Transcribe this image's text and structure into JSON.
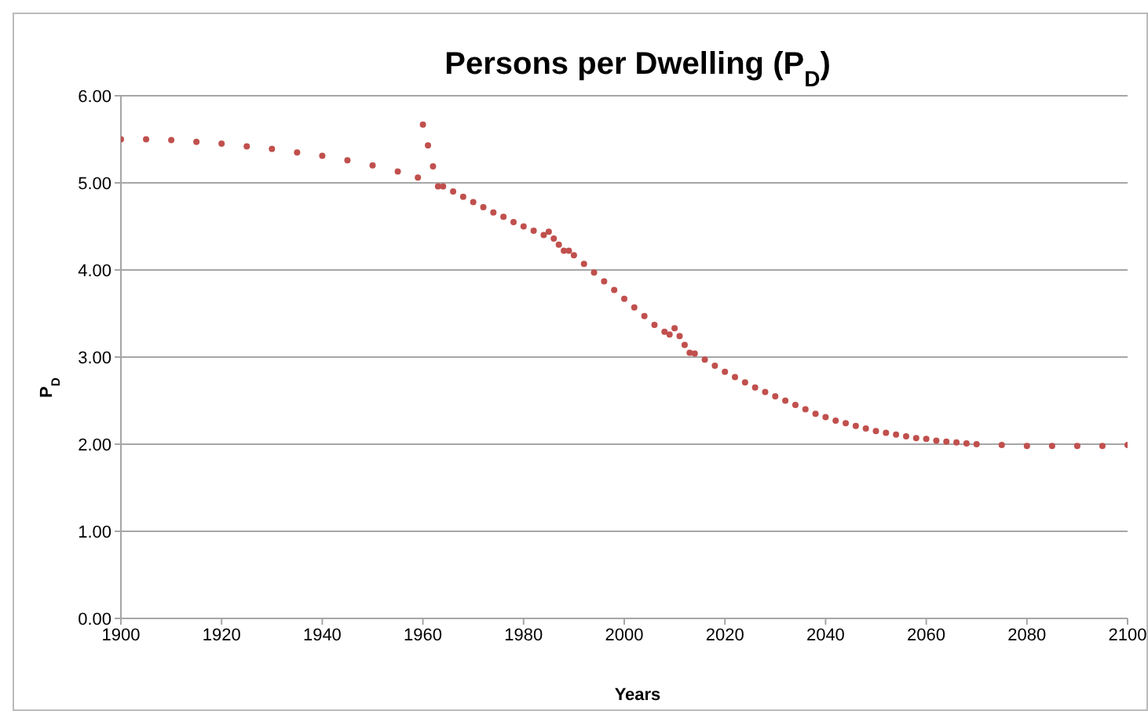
{
  "chart_data": {
    "type": "scatter",
    "title": "Persons per Dwelling (P$_{D}$)",
    "xlabel": "Years",
    "ylabel": "P$_{D}$",
    "x": [
      1900,
      1905,
      1910,
      1915,
      1920,
      1925,
      1930,
      1935,
      1940,
      1945,
      1950,
      1955,
      1959,
      1960,
      1961,
      1962,
      1963,
      1964,
      1966,
      1968,
      1970,
      1972,
      1974,
      1976,
      1978,
      1980,
      1982,
      1984,
      1985,
      1986,
      1987,
      1988,
      1989,
      1990,
      1992,
      1994,
      1996,
      1998,
      2000,
      2002,
      2004,
      2006,
      2008,
      2009,
      2010,
      2011,
      2012,
      2013,
      2014,
      2016,
      2018,
      2020,
      2022,
      2024,
      2026,
      2028,
      2030,
      2032,
      2034,
      2036,
      2038,
      2040,
      2042,
      2044,
      2046,
      2048,
      2050,
      2052,
      2054,
      2056,
      2058,
      2060,
      2062,
      2064,
      2066,
      2068,
      2070,
      2075,
      2080,
      2085,
      2090,
      2095,
      2100
    ],
    "series": [
      {
        "color": "#c0504d",
        "values": [
          5.5,
          5.5,
          5.49,
          5.47,
          5.45,
          5.42,
          5.39,
          5.35,
          5.31,
          5.26,
          5.2,
          5.13,
          5.06,
          5.67,
          5.43,
          5.19,
          4.96,
          4.96,
          4.9,
          4.84,
          4.78,
          4.72,
          4.66,
          4.61,
          4.55,
          4.5,
          4.45,
          4.4,
          4.44,
          4.36,
          4.29,
          4.22,
          4.22,
          4.17,
          4.07,
          3.97,
          3.87,
          3.77,
          3.67,
          3.57,
          3.47,
          3.37,
          3.29,
          3.26,
          3.33,
          3.24,
          3.14,
          3.05,
          3.04,
          2.97,
          2.9,
          2.83,
          2.77,
          2.71,
          2.65,
          2.6,
          2.55,
          2.5,
          2.45,
          2.4,
          2.35,
          2.31,
          2.27,
          2.24,
          2.21,
          2.18,
          2.15,
          2.13,
          2.11,
          2.09,
          2.07,
          2.06,
          2.04,
          2.03,
          2.02,
          2.01,
          2.0,
          1.99,
          1.98,
          1.98,
          1.98,
          1.98,
          1.99
        ]
      }
    ],
    "xlim": [
      1900,
      2100
    ],
    "xticks": [
      1900,
      1920,
      1940,
      1960,
      1980,
      2000,
      2020,
      2040,
      2060,
      2080,
      2100
    ],
    "ylim": [
      0,
      6
    ],
    "yticks": [
      {
        "value": 0,
        "label": "0.00"
      },
      {
        "value": 1,
        "label": "1.00"
      },
      {
        "value": 2,
        "label": "2.00"
      },
      {
        "value": 3,
        "label": "3.00"
      },
      {
        "value": 4,
        "label": "4.00"
      },
      {
        "value": 5,
        "label": "5.00"
      },
      {
        "value": 6,
        "label": "6.00"
      }
    ],
    "grid": "y",
    "marker": "circle"
  }
}
